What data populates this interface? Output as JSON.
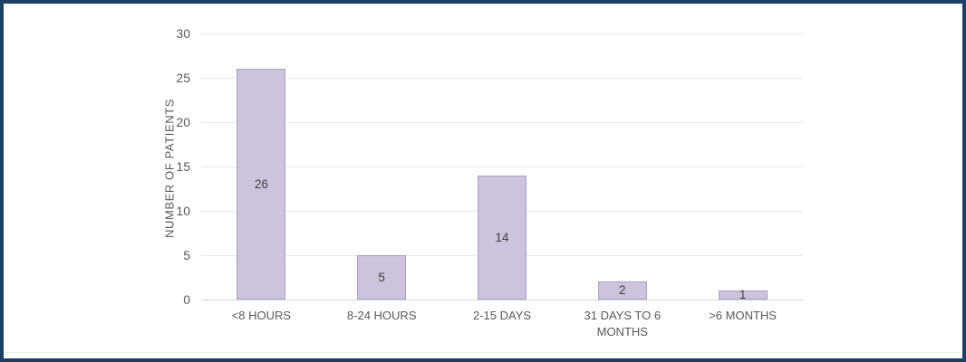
{
  "chart_data": {
    "type": "bar",
    "categories": [
      "<8 HOURS",
      "8-24 HOURS",
      "2-15 DAYS",
      "31 DAYS TO 6 MONTHS",
      ">6 MONTHS"
    ],
    "values": [
      26,
      5,
      14,
      2,
      1
    ],
    "data_labels": [
      "26",
      "5",
      "14",
      "2",
      "1"
    ],
    "title": "",
    "xlabel": "",
    "ylabel": "NUMBER OF PATIENTS",
    "ylim": [
      0,
      30
    ],
    "yticks": [
      0,
      5,
      10,
      15,
      20,
      25,
      30
    ],
    "grid": "horizontal",
    "legend": "none",
    "colors": {
      "bar_fill": "#cdc3dc",
      "bar_border": "#ab9ec3",
      "gridline": "#e9e7e8",
      "baseline": "#d6d4d4",
      "axis_text": "#595959",
      "value_text": "#3f3f3f",
      "frame_border": "#1a4064",
      "background": "#ffffff"
    }
  }
}
